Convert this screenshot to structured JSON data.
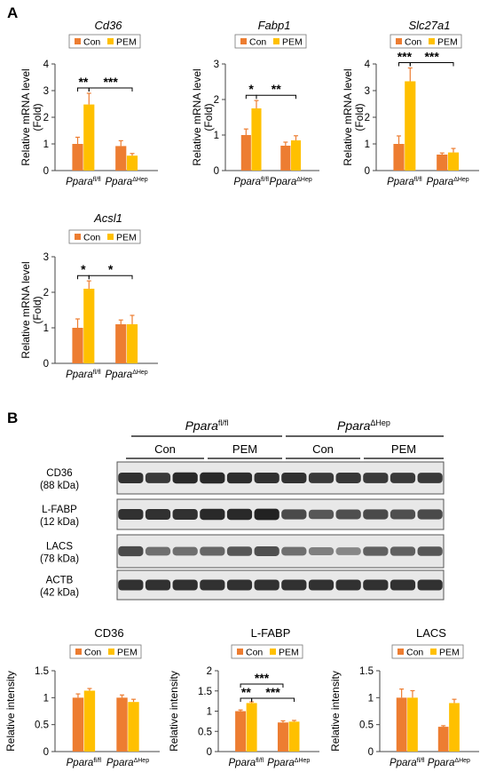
{
  "panels": {
    "a_label": "A",
    "b_label": "B"
  },
  "colors": {
    "con": "#ED7D31",
    "pem": "#FFC000",
    "error": "#ED7D31",
    "blot_bg": "#e8e8e8",
    "band": "#1a1a1a"
  },
  "legend": {
    "con": "Con",
    "pem": "PEM"
  },
  "genotypes": {
    "flfl_base": "Ppara",
    "flfl_sup": "fl/fl",
    "hep_base": "Ppara",
    "hep_sup": "ΔHep"
  },
  "chart_data": [
    {
      "type": "bar",
      "title": "Cd36",
      "ylabel": "Relative mRNA level",
      "ylabel2": "(Fold)",
      "ylim": [
        0,
        4
      ],
      "yticks": [
        "0",
        "1",
        "2",
        "3",
        "4"
      ],
      "categories": [
        "Ppara fl/fl",
        "Ppara ΔHep"
      ],
      "series": [
        {
          "name": "Con",
          "values": [
            1.0,
            0.92
          ],
          "errors": [
            0.25,
            0.2
          ]
        },
        {
          "name": "PEM",
          "values": [
            2.48,
            0.56
          ],
          "errors": [
            0.42,
            0.08
          ]
        }
      ],
      "significance": [
        {
          "label": "**",
          "between": "fl/fl Con vs fl/fl PEM"
        },
        {
          "label": "***",
          "between": "fl/fl PEM vs ΔHep PEM"
        }
      ]
    },
    {
      "type": "bar",
      "title": "Fabp1",
      "ylabel": "Relative mRNA level",
      "ylabel2": "(Fold)",
      "ylim": [
        0,
        3
      ],
      "yticks": [
        "0",
        "1",
        "2",
        "3"
      ],
      "categories": [
        "Ppara fl/fl",
        "Ppara ΔHep"
      ],
      "series": [
        {
          "name": "Con",
          "values": [
            1.0,
            0.7
          ],
          "errors": [
            0.17,
            0.1
          ]
        },
        {
          "name": "PEM",
          "values": [
            1.75,
            0.85
          ],
          "errors": [
            0.22,
            0.13
          ]
        }
      ],
      "significance": [
        {
          "label": "*",
          "between": "fl/fl Con vs fl/fl PEM"
        },
        {
          "label": "**",
          "between": "fl/fl PEM vs ΔHep PEM"
        }
      ]
    },
    {
      "type": "bar",
      "title": "Slc27a1",
      "ylabel": "Relative mRNA level",
      "ylabel2": "(Fold)",
      "ylim": [
        0,
        4
      ],
      "yticks": [
        "0",
        "1",
        "2",
        "3",
        "4"
      ],
      "categories": [
        "Ppara fl/fl",
        "Ppara ΔHep"
      ],
      "series": [
        {
          "name": "Con",
          "values": [
            1.0,
            0.6
          ],
          "errors": [
            0.3,
            0.06
          ]
        },
        {
          "name": "PEM",
          "values": [
            3.35,
            0.68
          ],
          "errors": [
            0.5,
            0.15
          ]
        }
      ],
      "significance": [
        {
          "label": "***",
          "between": "fl/fl Con vs fl/fl PEM"
        },
        {
          "label": "***",
          "between": "fl/fl PEM vs ΔHep PEM"
        }
      ]
    },
    {
      "type": "bar",
      "title": "Acsl1",
      "ylabel": "Relative mRNA level",
      "ylabel2": "(Fold)",
      "ylim": [
        0,
        3
      ],
      "yticks": [
        "0",
        "1",
        "2",
        "3"
      ],
      "categories": [
        "Ppara fl/fl",
        "Ppara ΔHep"
      ],
      "series": [
        {
          "name": "Con",
          "values": [
            1.0,
            1.1
          ],
          "errors": [
            0.25,
            0.12
          ]
        },
        {
          "name": "PEM",
          "values": [
            2.1,
            1.1
          ],
          "errors": [
            0.22,
            0.25
          ]
        }
      ],
      "significance": [
        {
          "label": "*",
          "between": "fl/fl Con vs fl/fl PEM"
        },
        {
          "label": "*",
          "between": "fl/fl PEM vs ΔHep PEM"
        }
      ]
    },
    {
      "type": "bar",
      "title": "CD36",
      "ylabel": "Relative intensity",
      "ylim": [
        0,
        1.5
      ],
      "yticks": [
        "0",
        "0.5",
        "1",
        "1.5"
      ],
      "categories": [
        "Ppara fl/fl",
        "Ppara ΔHep"
      ],
      "series": [
        {
          "name": "Con",
          "values": [
            1.0,
            1.0
          ],
          "errors": [
            0.07,
            0.05
          ]
        },
        {
          "name": "PEM",
          "values": [
            1.13,
            0.92
          ],
          "errors": [
            0.04,
            0.05
          ]
        }
      ],
      "significance": []
    },
    {
      "type": "bar",
      "title": "L-FABP",
      "ylabel": "Relative intensity",
      "ylim": [
        0,
        2
      ],
      "yticks": [
        "0",
        "0.5",
        "1",
        "1.5",
        "2"
      ],
      "categories": [
        "Ppara fl/fl",
        "Ppara ΔHep"
      ],
      "series": [
        {
          "name": "Con",
          "values": [
            1.0,
            0.72
          ],
          "errors": [
            0.03,
            0.04
          ]
        },
        {
          "name": "PEM",
          "values": [
            1.2,
            0.74
          ],
          "errors": [
            0.03,
            0.03
          ]
        }
      ],
      "significance": [
        {
          "label": "***",
          "between": "fl/fl Con vs ΔHep Con"
        },
        {
          "label": "**",
          "between": "fl/fl Con vs fl/fl PEM"
        },
        {
          "label": "***",
          "between": "fl/fl PEM vs ΔHep PEM"
        }
      ]
    },
    {
      "type": "bar",
      "title": "LACS",
      "ylabel": "Relative intensity",
      "ylim": [
        0,
        1.5
      ],
      "yticks": [
        "0",
        "0.5",
        "1",
        "1.5"
      ],
      "categories": [
        "Ppara fl/fl",
        "Ppara ΔHep"
      ],
      "series": [
        {
          "name": "Con",
          "values": [
            1.0,
            0.46
          ],
          "errors": [
            0.16,
            0.02
          ]
        },
        {
          "name": "PEM",
          "values": [
            1.0,
            0.9
          ],
          "errors": [
            0.13,
            0.07
          ]
        }
      ],
      "significance": []
    }
  ],
  "blot": {
    "group_flfl_base": "Ppara",
    "group_flfl_sup": "fl/fl",
    "group_hep_base": "Ppara",
    "group_hep_sup": "ΔHep",
    "treatment_labels": [
      "Con",
      "PEM",
      "Con",
      "PEM"
    ],
    "rows": [
      {
        "protein": "CD36",
        "size": "(88 kDa)",
        "intensities": [
          0.85,
          0.8,
          0.9,
          0.9,
          0.88,
          0.85,
          0.85,
          0.8,
          0.82,
          0.8,
          0.8,
          0.8
        ]
      },
      {
        "protein": "L-FABP",
        "size": "(12 kDa)",
        "intensities": [
          0.85,
          0.85,
          0.85,
          0.9,
          0.9,
          0.95,
          0.7,
          0.6,
          0.65,
          0.7,
          0.65,
          0.7
        ]
      },
      {
        "protein": "LACS",
        "size": "(78 kDa)",
        "intensities": [
          0.7,
          0.45,
          0.45,
          0.5,
          0.6,
          0.65,
          0.45,
          0.35,
          0.3,
          0.55,
          0.55,
          0.6
        ]
      },
      {
        "protein": "ACTB",
        "size": "(42 kDa)",
        "intensities": [
          0.85,
          0.85,
          0.85,
          0.85,
          0.85,
          0.85,
          0.85,
          0.85,
          0.85,
          0.85,
          0.85,
          0.85
        ]
      }
    ]
  }
}
